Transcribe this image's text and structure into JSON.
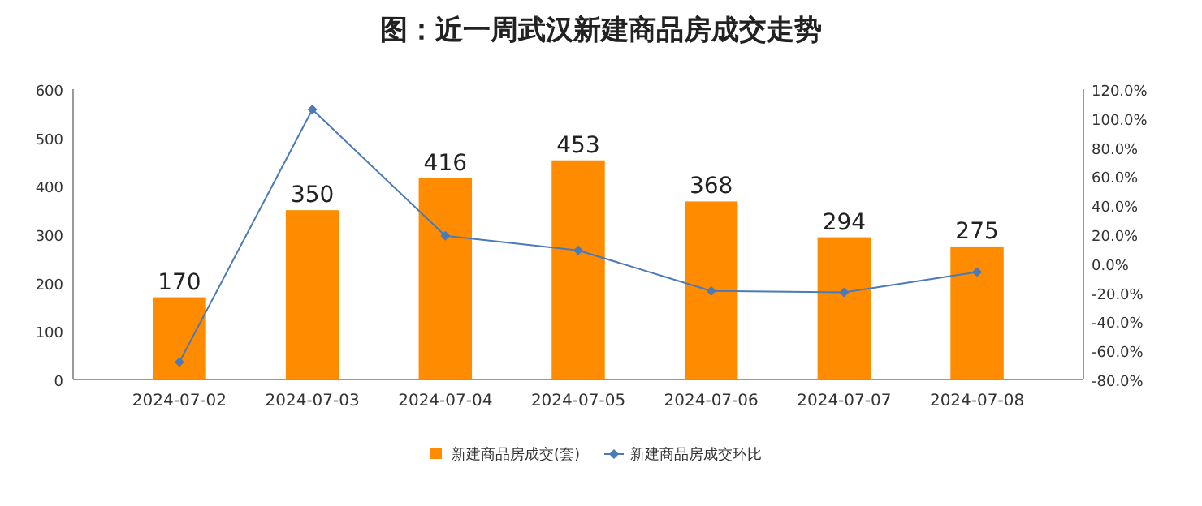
{
  "chart_data": {
    "type": "bar",
    "title": "图：近一周武汉新建商品房成交走势",
    "categories": [
      "2024-07-02",
      "2024-07-03",
      "2024-07-04",
      "2024-07-05",
      "2024-07-06",
      "2024-07-07",
      "2024-07-08"
    ],
    "series": [
      {
        "name": "新建商品房成交(套)",
        "color": "#ff8c00",
        "values": [
          170,
          350,
          416,
          453,
          368,
          294,
          275
        ],
        "value_labels": [
          "170",
          "350",
          "416",
          "453",
          "368",
          "294",
          "275"
        ]
      },
      {
        "name": "新建商品房成交环比",
        "type": "line",
        "axis": "y2",
        "color": "#4a7ab8",
        "values": [
          -68,
          106,
          19,
          9,
          -19,
          -20,
          -6
        ]
      }
    ],
    "marker": "diamond",
    "legend": "bottom",
    "ylim": [
      0,
      600
    ],
    "yticks": [
      0,
      100,
      200,
      300,
      400,
      500,
      600
    ],
    "y2lim": [
      -80,
      120
    ],
    "y2ticks": [
      {
        "value": -80,
        "label": "-80.0%"
      },
      {
        "value": -60,
        "label": "-60.0%"
      },
      {
        "value": -40,
        "label": "-40.0%"
      },
      {
        "value": -20,
        "label": "-20.0%"
      },
      {
        "value": 0,
        "label": "0.0%"
      },
      {
        "value": 20,
        "label": "20.0%"
      },
      {
        "value": 40,
        "label": "40.0%"
      },
      {
        "value": 60,
        "label": "60.0%"
      },
      {
        "value": 80,
        "label": "80.0%"
      },
      {
        "value": 100,
        "label": "100.0%"
      },
      {
        "value": 120,
        "label": "120.0%"
      }
    ]
  }
}
